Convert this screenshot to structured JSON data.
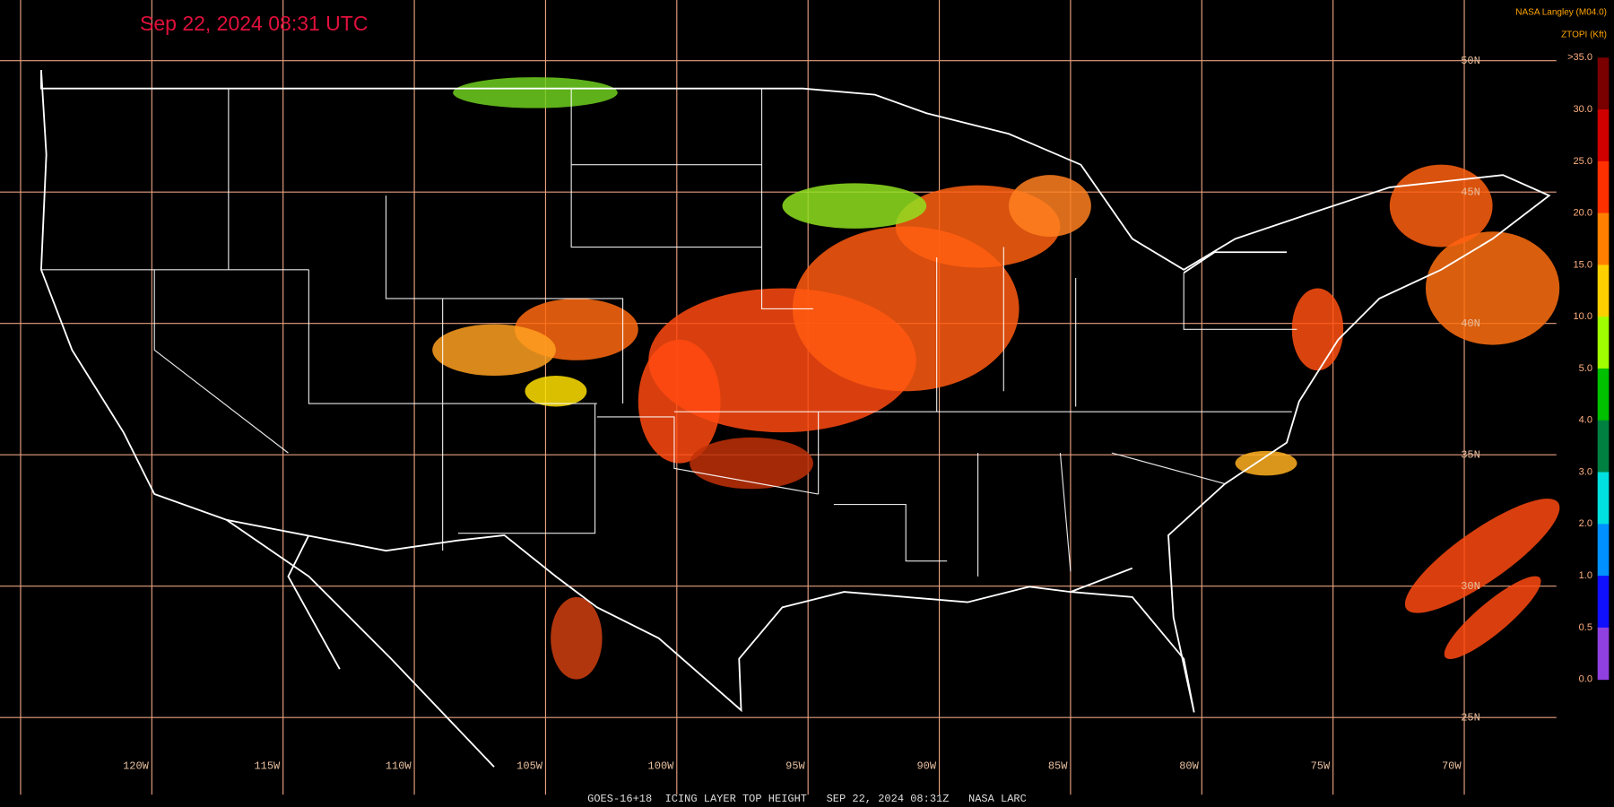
{
  "title": "Sep 22, 2024 08:31 UTC",
  "source": "NASA Langley (M04.0)",
  "colorbar": {
    "title": "ZTOPI (Kft)",
    "labels": [
      ">35.0",
      "30.0",
      "25.0",
      "20.0",
      "15.0",
      "10.0",
      "5.0",
      "4.0",
      "3.0",
      "2.0",
      "1.0",
      "0.5",
      "0.0"
    ],
    "colors": [
      "#7a0000",
      "#d00000",
      "#ff3000",
      "#ff8000",
      "#ffd000",
      "#a0ff00",
      "#00c000",
      "#008040",
      "#00e0e0",
      "#0090ff",
      "#1010ff",
      "#9040e0"
    ]
  },
  "longitude_labels": [
    "120W",
    "115W",
    "110W",
    "105W",
    "100W",
    "95W",
    "90W",
    "85W",
    "80W",
    "75W",
    "70W"
  ],
  "latitude_labels": [
    "50N",
    "45N",
    "40N",
    "35N",
    "30N",
    "25N"
  ],
  "footer": "GOES-16+18  ICING LAYER TOP HEIGHT   SEP 22, 2024 08:31Z   NASA LARC"
}
